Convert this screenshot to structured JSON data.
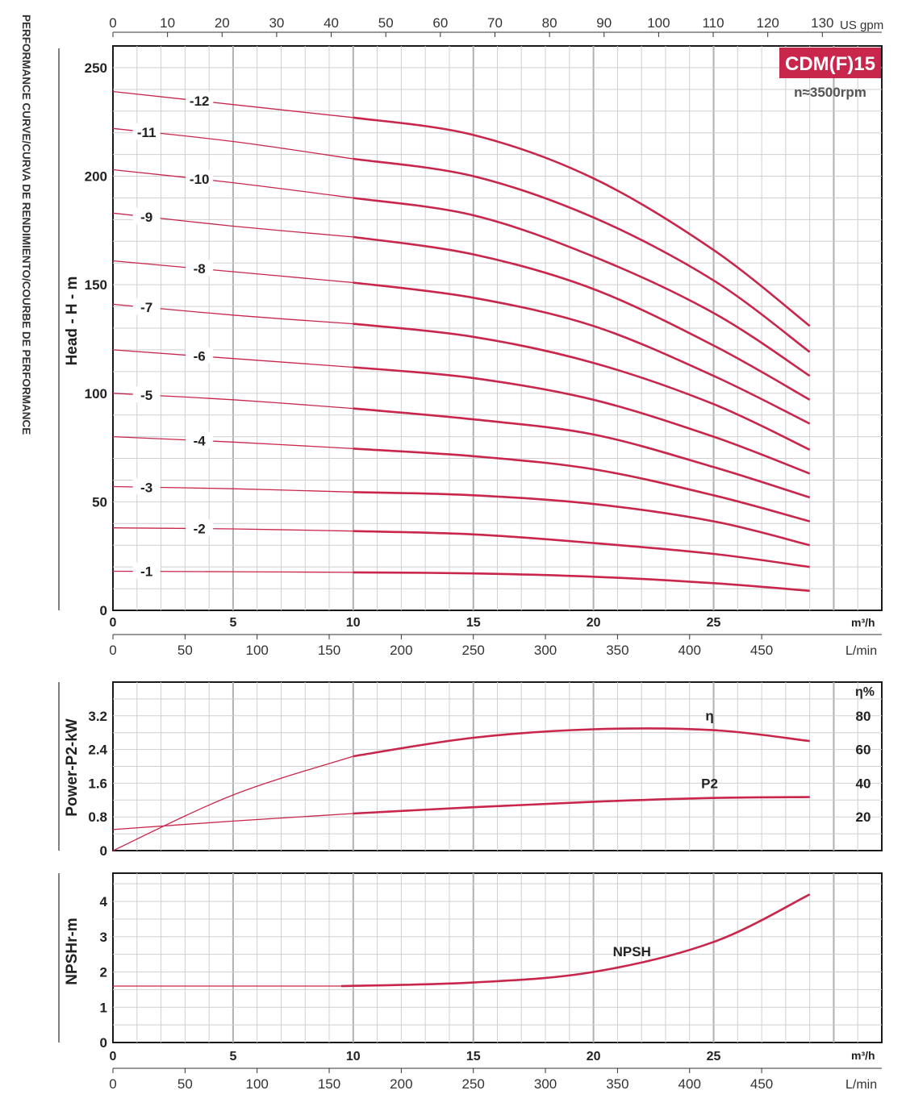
{
  "side_title": "PERFORMANCE CURVE/CURVA DE RENDIMIENTO/COURBE DE PERFORMANCE",
  "model_badge": "CDM(F)15",
  "speed_label": "n≈3500rpm",
  "colors": {
    "curve": "#c8264a",
    "badge": "#c8264a",
    "grid": "#cfcfcf",
    "frame": "#1a1a1a"
  },
  "units": {
    "gpm": "US gpm",
    "m3h": "m³/h",
    "lmin": "L/min",
    "eta_pct": "η%"
  },
  "gpm_axis": {
    "ticks": [
      0,
      10,
      20,
      30,
      40,
      50,
      60,
      70,
      80,
      90,
      100,
      110,
      120,
      130
    ]
  },
  "flow_m3h_ticks": [
    0,
    5,
    10,
    15,
    20,
    25
  ],
  "flow_lmin_ticks": [
    0,
    50,
    100,
    150,
    200,
    250,
    300,
    350,
    400,
    450
  ],
  "chart_data": [
    {
      "type": "line",
      "ylabel": "Head - H - m",
      "xlim": [
        0,
        32
      ],
      "ylim": [
        0,
        260
      ],
      "yticks": [
        0,
        50,
        100,
        150,
        200,
        250
      ],
      "x": [
        0,
        5,
        10,
        15,
        20,
        25,
        29
      ],
      "series": [
        {
          "name": "-1",
          "values": [
            18,
            17.8,
            17.5,
            17,
            15.5,
            12.5,
            9
          ]
        },
        {
          "name": "-2",
          "values": [
            38,
            37.5,
            36.5,
            35,
            31,
            26,
            20
          ]
        },
        {
          "name": "-3",
          "values": [
            57,
            56,
            54.5,
            53,
            49,
            41,
            30
          ]
        },
        {
          "name": "-4",
          "values": [
            80,
            77.5,
            74.5,
            71,
            65,
            53,
            41
          ]
        },
        {
          "name": "-5",
          "values": [
            100,
            97,
            93,
            88,
            81,
            66,
            52
          ]
        },
        {
          "name": "-6",
          "values": [
            120,
            116,
            112,
            107,
            97,
            80,
            63
          ]
        },
        {
          "name": "-7",
          "values": [
            141,
            136,
            132,
            126,
            114,
            95,
            74
          ]
        },
        {
          "name": "-8",
          "values": [
            161,
            156,
            151,
            144,
            131,
            108,
            86
          ]
        },
        {
          "name": "-9",
          "values": [
            183,
            177,
            172,
            164,
            148,
            122,
            97
          ]
        },
        {
          "name": "-10",
          "values": [
            203,
            197,
            190,
            182,
            163,
            137,
            108
          ]
        },
        {
          "name": "-11",
          "values": [
            222,
            216,
            208,
            200,
            181,
            152,
            119
          ]
        },
        {
          "name": "-12",
          "values": [
            239,
            233,
            227,
            219,
            199,
            166,
            131
          ]
        }
      ]
    },
    {
      "type": "line",
      "ylabel": "Power-P2-kW",
      "y2label": "η%",
      "xlim": [
        0,
        32
      ],
      "ylim": [
        0,
        4
      ],
      "yticks": [
        0,
        0.8,
        1.6,
        2.4,
        3.2
      ],
      "y2lim": [
        0,
        100
      ],
      "y2ticks": [
        20,
        40,
        60,
        80
      ],
      "series": [
        {
          "name": "η",
          "axis": "right",
          "x": [
            0,
            5,
            10,
            15,
            20,
            25,
            29
          ],
          "values": [
            0,
            33,
            56,
            67,
            72,
            71.5,
            65
          ]
        },
        {
          "name": "P2",
          "axis": "left",
          "x": [
            0,
            5,
            10,
            15,
            20,
            25,
            29
          ],
          "values": [
            0.5,
            0.7,
            0.88,
            1.03,
            1.16,
            1.25,
            1.27
          ]
        }
      ]
    },
    {
      "type": "line",
      "ylabel": "NPSHr-m",
      "xlim": [
        0,
        32
      ],
      "ylim": [
        0,
        4.8
      ],
      "yticks": [
        0,
        1,
        2,
        3,
        4
      ],
      "series": [
        {
          "name": "NPSH",
          "x": [
            0,
            9.5,
            15,
            20,
            25,
            29
          ],
          "values": [
            1.6,
            1.6,
            1.7,
            2.0,
            2.85,
            4.2
          ]
        }
      ]
    }
  ]
}
